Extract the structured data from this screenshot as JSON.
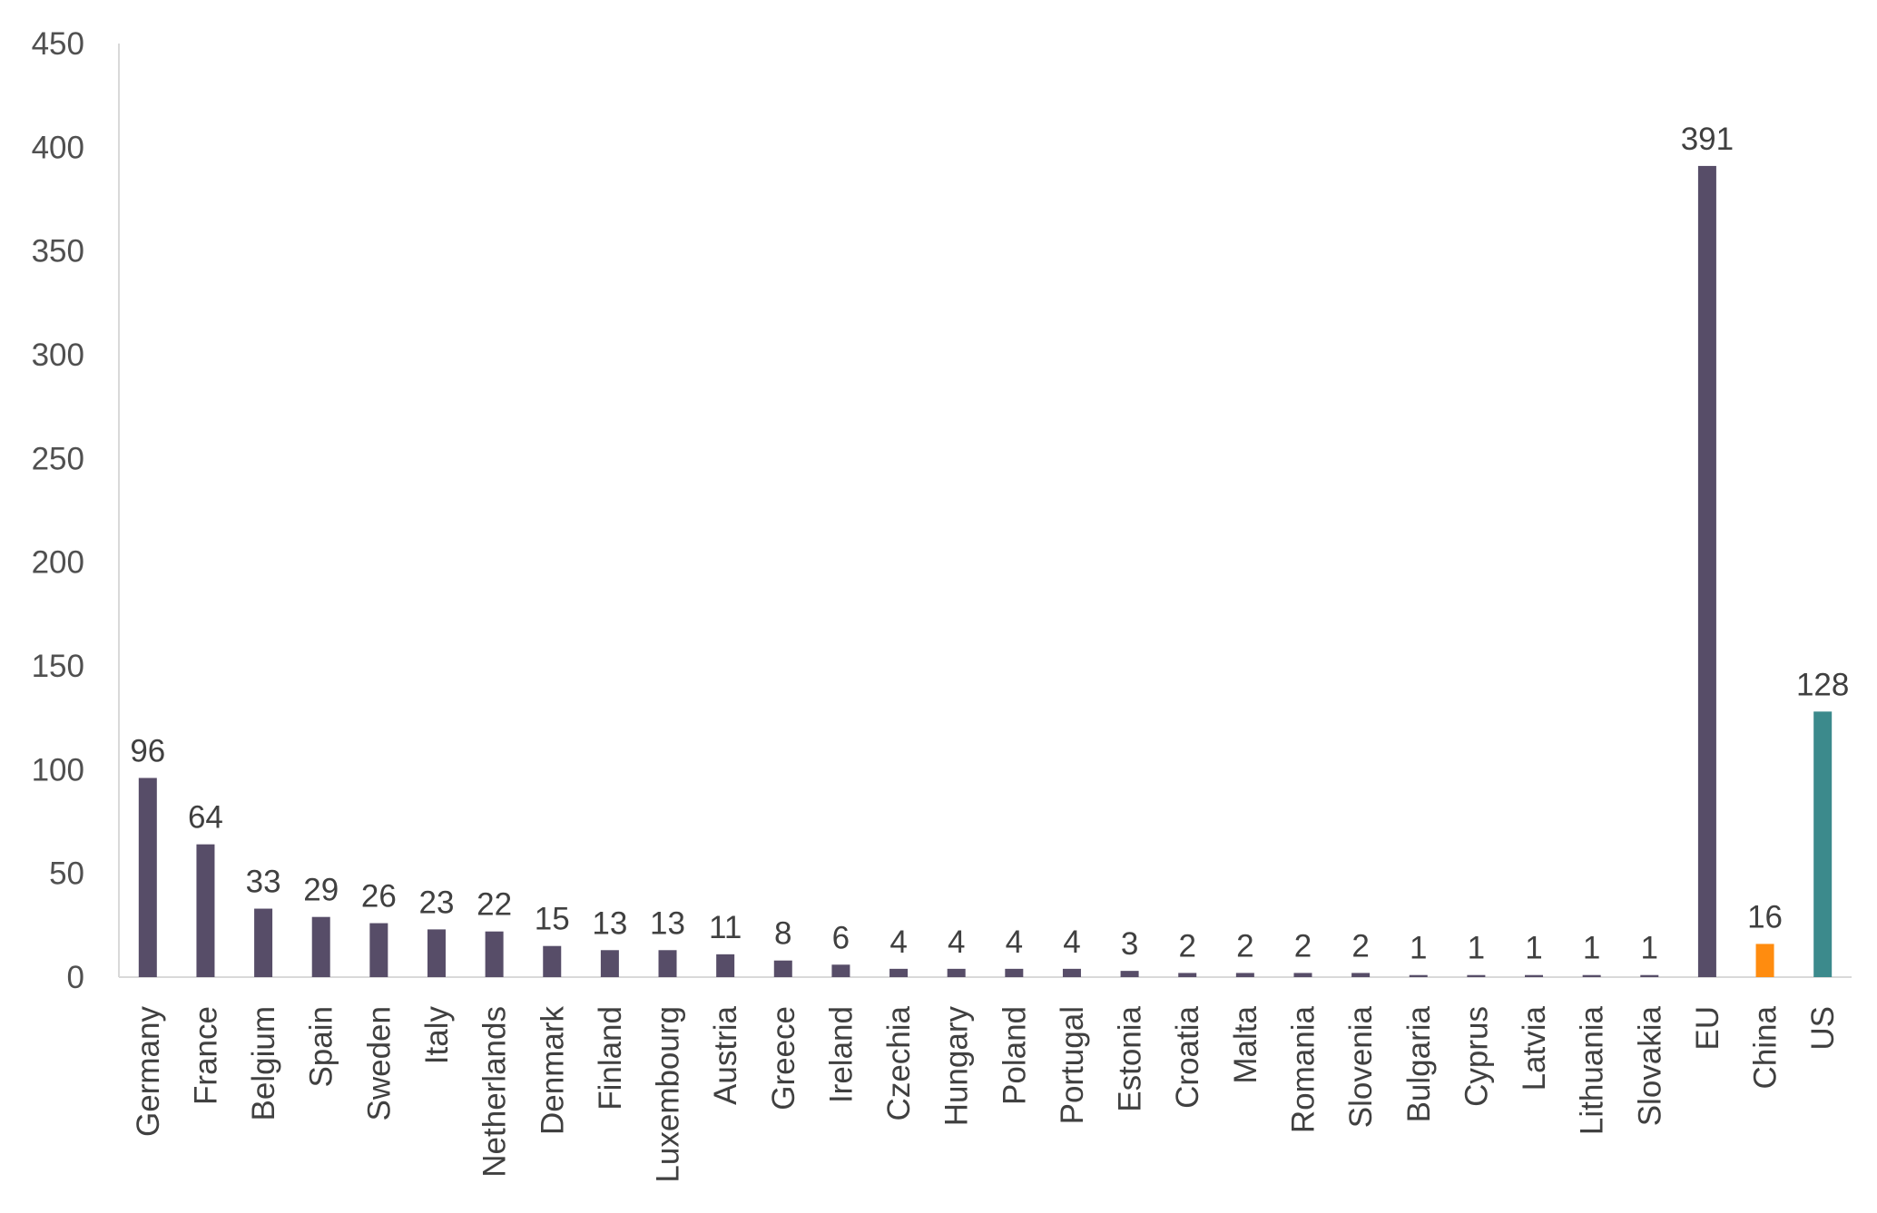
{
  "chart_data": {
    "type": "bar",
    "categories": [
      "Germany",
      "France",
      "Belgium",
      "Spain",
      "Sweden",
      "Italy",
      "Netherlands",
      "Denmark",
      "Finland",
      "Luxembourg",
      "Austria",
      "Greece",
      "Ireland",
      "Czechia",
      "Hungary",
      "Poland",
      "Portugal",
      "Estonia",
      "Croatia",
      "Malta",
      "Romania",
      "Slovenia",
      "Bulgaria",
      "Cyprus",
      "Latvia",
      "Lithuania",
      "Slovakia",
      "EU",
      "China",
      "US"
    ],
    "values": [
      96,
      64,
      33,
      29,
      26,
      23,
      22,
      15,
      13,
      13,
      11,
      8,
      6,
      4,
      4,
      4,
      4,
      3,
      2,
      2,
      2,
      2,
      1,
      1,
      1,
      1,
      1,
      391,
      16,
      128
    ],
    "bar_colors": [
      "#574d68",
      "#574d68",
      "#574d68",
      "#574d68",
      "#574d68",
      "#574d68",
      "#574d68",
      "#574d68",
      "#574d68",
      "#574d68",
      "#574d68",
      "#574d68",
      "#574d68",
      "#574d68",
      "#574d68",
      "#574d68",
      "#574d68",
      "#574d68",
      "#574d68",
      "#574d68",
      "#574d68",
      "#574d68",
      "#574d68",
      "#574d68",
      "#574d68",
      "#574d68",
      "#574d68",
      "#574d68",
      "#ff8c0f",
      "#3c8a8c"
    ],
    "y_ticks": [
      0,
      50,
      100,
      150,
      200,
      250,
      300,
      350,
      400,
      450
    ],
    "ylim": [
      0,
      450
    ],
    "title": "",
    "xlabel": "",
    "ylabel": "",
    "grid": false,
    "legend": "none",
    "colors": {
      "axis": "#d9d9d9",
      "tick_text": "#505050",
      "label_text": "#404040"
    }
  }
}
